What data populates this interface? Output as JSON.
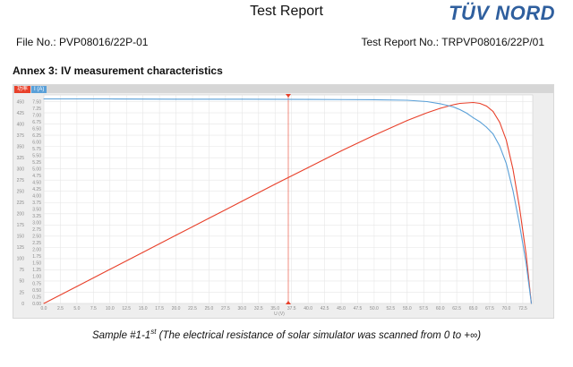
{
  "header": {
    "title": "Test Report",
    "logo_text": "TÜV NORD",
    "file_no": "File No.: PVP08016/22P-01",
    "report_no": "Test Report No.: TRPVP08016/22P/01"
  },
  "annex": {
    "title": "Annex 3: IV measurement characteristics"
  },
  "legend": {
    "power": {
      "label": "功率",
      "color": "#e8402a"
    },
    "current": {
      "label": "I (A)",
      "color": "#5aa0d8"
    }
  },
  "caption": {
    "prefix": "Sample #1-1",
    "superscript": "st",
    "suffix": "  (The electrical resistance of solar simulator was scanned from 0 to +∞)"
  },
  "chart_data": {
    "type": "line",
    "xlabel": "U (V)",
    "xlim": [
      0,
      74
    ],
    "x_ticks": [
      "0.0",
      "2.5",
      "5.0",
      "7.5",
      "10.0",
      "12.5",
      "15.0",
      "17.5",
      "20.0",
      "22.5",
      "25.0",
      "27.5",
      "30.0",
      "32.5",
      "35.0",
      "37.5",
      "40.0",
      "42.5",
      "45.0",
      "47.5",
      "50.0",
      "52.5",
      "55.0",
      "57.5",
      "60.0",
      "62.5",
      "65.0",
      "67.5",
      "70.0",
      "72.5"
    ],
    "y_left_ticks": [
      "0",
      "25",
      "50",
      "75",
      "100",
      "125",
      "150",
      "175",
      "200",
      "225",
      "250",
      "275",
      "300",
      "325",
      "350",
      "375",
      "400",
      "425",
      "450"
    ],
    "y_right_ticks": [
      "0.00",
      "0.25",
      "0.50",
      "0.75",
      "1.00",
      "1.25",
      "1.50",
      "1.75",
      "2.00",
      "2.25",
      "2.50",
      "2.75",
      "3.00",
      "3.25",
      "3.50",
      "3.75",
      "4.00",
      "4.25",
      "4.50",
      "4.75",
      "5.00",
      "5.25",
      "5.50",
      "5.75",
      "6.00",
      "6.25",
      "6.50",
      "6.75",
      "7.00",
      "7.25",
      "7.50"
    ],
    "ylim_left": [
      0,
      465
    ],
    "ylim_right": [
      0,
      7.75
    ],
    "series": [
      {
        "name": "功率",
        "axis": "left",
        "color": "#e8402a",
        "x": [
          0,
          5,
          10,
          15,
          20,
          25,
          30,
          35,
          40,
          45,
          50,
          55,
          58,
          60,
          62,
          63,
          64,
          65,
          66,
          67,
          68,
          69,
          70,
          71,
          72,
          73,
          73.8
        ],
        "y": [
          0,
          38,
          76,
          114,
          152,
          190,
          228,
          266,
          303,
          340,
          375,
          408,
          425,
          435,
          443,
          446,
          447,
          448,
          446,
          440,
          428,
          404,
          364,
          300,
          215,
          110,
          0
        ]
      },
      {
        "name": "I (A)",
        "axis": "right",
        "color": "#5aa0d8",
        "x": [
          0,
          10,
          20,
          30,
          40,
          50,
          55,
          58,
          60,
          62,
          63,
          64,
          65,
          66,
          67,
          68,
          69,
          70,
          71,
          72,
          73,
          73.8
        ],
        "y": [
          7.6,
          7.6,
          7.59,
          7.59,
          7.58,
          7.57,
          7.55,
          7.5,
          7.42,
          7.3,
          7.2,
          7.07,
          6.9,
          6.75,
          6.55,
          6.3,
          5.85,
          5.2,
          4.2,
          2.95,
          1.5,
          0
        ]
      }
    ],
    "marker": {
      "x": 37.0,
      "color": "#e8402a"
    },
    "grid": true,
    "legend_position": "top-left"
  }
}
